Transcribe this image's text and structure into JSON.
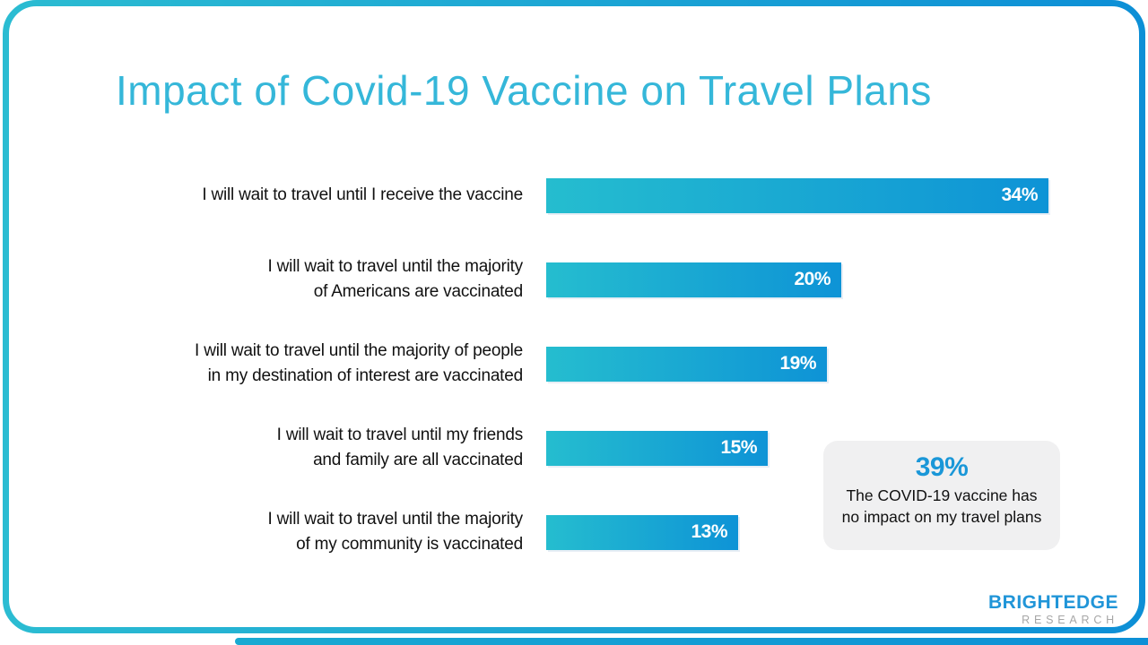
{
  "page": {
    "title": "Impact of Covid-19 Vaccine on Travel Plans"
  },
  "chart_data": {
    "type": "bar",
    "orientation": "horizontal",
    "title": "Impact of Covid-19 Vaccine on Travel Plans",
    "categories": [
      "I will wait to travel until I receive the vaccine",
      "I will wait to travel until the majority of Americans are vaccinated",
      "I will wait to travel until the majority of people in my destination of interest are vaccinated",
      "I will wait to travel until my friends and family are all vaccinated",
      "I will wait to travel until the majority of my community is vaccinated"
    ],
    "values": [
      34,
      20,
      19,
      15,
      13
    ],
    "data_labels": [
      "34%",
      "20%",
      "19%",
      "15%",
      "13%"
    ],
    "unit": "percent",
    "xlim": [
      0,
      34
    ],
    "grid": false,
    "axes_shown": false,
    "legend": "none",
    "bars": [
      {
        "label_lines": [
          "I will wait to travel until I receive the vaccine"
        ],
        "value": 34,
        "label": "34%"
      },
      {
        "label_lines": [
          "I will wait to travel until the majority",
          "of Americans are vaccinated"
        ],
        "value": 20,
        "label": "20%"
      },
      {
        "label_lines": [
          "I will wait to travel until the majority of people",
          "in my destination of interest are vaccinated"
        ],
        "value": 19,
        "label": "19%"
      },
      {
        "label_lines": [
          "I will wait to travel until my friends",
          "and family are all vaccinated"
        ],
        "value": 15,
        "label": "15%"
      },
      {
        "label_lines": [
          "I will wait to travel until the majority",
          "of my community is vaccinated"
        ],
        "value": 13,
        "label": "13%"
      }
    ]
  },
  "callout": {
    "value": "39%",
    "text": "The COVID-19 vaccine has no impact on my travel plans"
  },
  "logo": {
    "name": "BRIGHTEDGE",
    "subtitle": "RESEARCH"
  },
  "colors": {
    "frame_gradient_start": "#2bbcd2",
    "frame_gradient_end": "#0d8fd6",
    "title": "#35b7d9",
    "bar_gradient_start": "#25bdcf",
    "bar_gradient_end": "#0e93d6",
    "bar_value_text": "#ffffff",
    "callout_bg": "#f0f0f1",
    "callout_value": "#1a97d8",
    "label_text": "#111111",
    "logo_blue": "#2095d8",
    "logo_gray": "#a6a6a6"
  }
}
